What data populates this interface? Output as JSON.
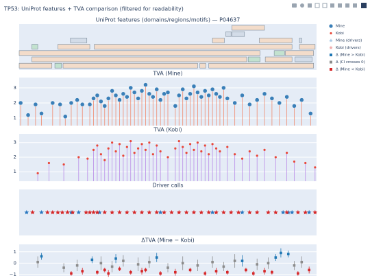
{
  "title": "TP53: UniProt features + TVA comparison (filtered for readability)",
  "chart_data": [
    {
      "type": "features",
      "title": "UniProt features (domains/regions/motifs) — P04637",
      "xlim": [
        0,
        400
      ],
      "features": [
        {
          "start": 286,
          "end": 330,
          "row": 0,
          "color": "#f3dcca"
        },
        {
          "start": 278,
          "end": 285,
          "row": 1,
          "color": "#d3dce8"
        },
        {
          "start": 286,
          "end": 303,
          "row": 1,
          "color": "#d3dce8"
        },
        {
          "start": 69,
          "end": 91,
          "row": 2,
          "color": "#d3dce8"
        },
        {
          "start": 260,
          "end": 276,
          "row": 2,
          "color": "#f3dcca"
        },
        {
          "start": 323,
          "end": 367,
          "row": 2,
          "color": "#f3dcca"
        },
        {
          "start": 377,
          "end": 380,
          "row": 2,
          "color": "#d3dce8"
        },
        {
          "start": 17,
          "end": 25,
          "row": 3,
          "color": "#c3e2cf"
        },
        {
          "start": 52,
          "end": 95,
          "row": 3,
          "color": "#f3dcca"
        },
        {
          "start": 101,
          "end": 367,
          "row": 3,
          "color": "#f3dcca"
        },
        {
          "start": 377,
          "end": 398,
          "row": 3,
          "color": "#f3dcca"
        },
        {
          "start": 0,
          "end": 324,
          "row": 4,
          "color": "#f3dcca"
        },
        {
          "start": 343,
          "end": 357,
          "row": 4,
          "color": "#c3e2cf"
        },
        {
          "start": 358,
          "end": 396,
          "row": 4,
          "color": "#f3dcca"
        },
        {
          "start": 17,
          "end": 306,
          "row": 5,
          "color": "#f3dcca"
        },
        {
          "start": 308,
          "end": 324,
          "row": 5,
          "color": "#c3e2cf"
        },
        {
          "start": 331,
          "end": 367,
          "row": 5,
          "color": "#f3dcca"
        },
        {
          "start": 371,
          "end": 394,
          "row": 5,
          "color": "#d3dce8"
        },
        {
          "start": 0,
          "end": 44,
          "row": 6,
          "color": "#f3dcca"
        },
        {
          "start": 48,
          "end": 57,
          "row": 6,
          "color": "#c3e2cf"
        },
        {
          "start": 59,
          "end": 240,
          "row": 6,
          "color": "#f3dcca"
        },
        {
          "start": 243,
          "end": 251,
          "row": 6,
          "color": "#f3dcca"
        },
        {
          "start": 255,
          "end": 396,
          "row": 6,
          "color": "#f3dcca"
        }
      ]
    },
    {
      "type": "stem",
      "title": "TVA (Mine)",
      "xlim": [
        0,
        400
      ],
      "ylim": [
        0.5,
        3.68
      ],
      "yticks": [
        1,
        2,
        3
      ],
      "grid": true,
      "series": [
        {
          "name": "Mine",
          "color": "#3a7fb8",
          "stem_color": "#f08a6e",
          "marker": "circle",
          "x": [
            2,
            12,
            22,
            30,
            45,
            55,
            62,
            70,
            78,
            85,
            95,
            100,
            105,
            110,
            115,
            120,
            125,
            130,
            135,
            140,
            145,
            150,
            155,
            160,
            165,
            170,
            175,
            180,
            185,
            190,
            195,
            200,
            210,
            215,
            220,
            225,
            230,
            235,
            240,
            245,
            250,
            255,
            260,
            265,
            270,
            275,
            280,
            290,
            300,
            310,
            320,
            330,
            340,
            350,
            360,
            370,
            380,
            392
          ],
          "values": [
            2.0,
            1.2,
            1.9,
            1.3,
            2.0,
            1.9,
            1.1,
            2.0,
            2.2,
            1.9,
            1.9,
            2.3,
            2.5,
            2.1,
            1.8,
            2.3,
            2.8,
            2.5,
            2.2,
            2.6,
            2.4,
            3.0,
            2.7,
            2.3,
            2.8,
            3.2,
            2.6,
            2.4,
            2.9,
            2.2,
            2.6,
            2.7,
            1.8,
            2.5,
            2.9,
            2.3,
            2.6,
            3.1,
            2.7,
            2.4,
            2.8,
            2.5,
            2.9,
            2.6,
            2.4,
            3.0,
            2.3,
            2.0,
            2.5,
            1.9,
            2.2,
            2.6,
            2.3,
            2.0,
            2.4,
            1.8,
            2.2,
            1.3
          ]
        }
      ]
    },
    {
      "type": "stem",
      "title": "TVA (Kobi)",
      "xlim": [
        0,
        400
      ],
      "ylim": [
        0.35,
        3.6
      ],
      "yticks": [
        1,
        2,
        3
      ],
      "grid": true,
      "series": [
        {
          "name": "Kobi",
          "color": "#e8483a",
          "stem_color": "#b98be8",
          "marker": "dot",
          "x": [
            25,
            40,
            60,
            80,
            92,
            100,
            105,
            110,
            115,
            120,
            125,
            130,
            135,
            140,
            145,
            150,
            155,
            160,
            165,
            170,
            175,
            180,
            185,
            190,
            200,
            210,
            215,
            220,
            225,
            230,
            235,
            240,
            245,
            250,
            255,
            260,
            265,
            270,
            280,
            290,
            300,
            310,
            320,
            330,
            345,
            360,
            370,
            385,
            398
          ],
          "values": [
            0.9,
            1.6,
            1.5,
            2.0,
            1.9,
            2.5,
            2.8,
            2.2,
            1.8,
            2.6,
            3.0,
            2.4,
            2.9,
            2.1,
            2.7,
            3.1,
            2.3,
            2.6,
            2.9,
            2.5,
            3.0,
            2.2,
            2.8,
            2.4,
            2.0,
            2.6,
            3.1,
            2.7,
            2.3,
            2.9,
            2.5,
            3.0,
            2.4,
            2.8,
            2.2,
            2.9,
            2.6,
            2.4,
            2.7,
            2.2,
            1.9,
            2.4,
            2.1,
            2.5,
            2.0,
            2.3,
            1.7,
            1.6,
            1.3
          ]
        }
      ]
    },
    {
      "type": "strip",
      "title": "Driver calls",
      "xlim": [
        0,
        400
      ],
      "series": [
        {
          "name": "Mine (drivers)",
          "color": "#2a78c0",
          "x": [
            10,
            30,
            70,
            80,
            108,
            190,
            260,
            300,
            355,
            362,
            367,
            390
          ]
        },
        {
          "name": "Kobi (drivers)",
          "color": "#d62728",
          "x": [
            18,
            38,
            45,
            52,
            58,
            65,
            72,
            90,
            95,
            100,
            105,
            115,
            125,
            135,
            145,
            155,
            165,
            175,
            185,
            195,
            205,
            215,
            225,
            235,
            245,
            255,
            265,
            275,
            285,
            295,
            310,
            320,
            335,
            345,
            360,
            375,
            385,
            398
          ]
        }
      ]
    },
    {
      "type": "errorbar",
      "title": "ΔTVA (Mine − Kobi)",
      "xlim": [
        0,
        400
      ],
      "ylim": [
        -1.12,
        1.65
      ],
      "yticks": [
        {
          "value": -1,
          "label": "−1"
        },
        0,
        1
      ],
      "grid": true,
      "series": [
        {
          "name": "Δ (Mine > Kobi)",
          "color": "#1f77b4",
          "x": [
            30,
            98,
            130,
            185,
            300,
            345,
            352,
            362
          ],
          "values": [
            0.6,
            0.3,
            0.4,
            0.5,
            0.2,
            0.5,
            0.9,
            0.8
          ],
          "errors": [
            0.3,
            0.3,
            0.4,
            0.4,
            0.5,
            0.3,
            0.4,
            0.3
          ]
        },
        {
          "name": "Δ (CI crosses 0)",
          "color": "#8c8c8c",
          "x": [
            25,
            60,
            78,
            110,
            125,
            140,
            160,
            175,
            200,
            220,
            240,
            260,
            275,
            290,
            320,
            335,
            370,
            380
          ],
          "values": [
            0.1,
            -0.4,
            -0.2,
            0.0,
            -0.3,
            0.2,
            -0.1,
            0.1,
            -0.4,
            0.0,
            -0.2,
            0.1,
            -0.3,
            0.2,
            -0.1,
            0.0,
            -0.2,
            0.1
          ],
          "errors": [
            0.5,
            0.4,
            0.5,
            0.6,
            0.5,
            0.5,
            0.6,
            0.5,
            0.4,
            0.6,
            0.5,
            0.5,
            0.4,
            0.6,
            0.5,
            0.5,
            0.4,
            0.5
          ]
        },
        {
          "name": "Δ (Mine < Kobi)",
          "color": "#d62728",
          "x": [
            70,
            85,
            105,
            115,
            120,
            135,
            150,
            165,
            170,
            190,
            210,
            230,
            250,
            265,
            280,
            305,
            315,
            330,
            340,
            375,
            390
          ],
          "values": [
            -0.9,
            -0.7,
            -0.8,
            -0.6,
            -0.9,
            -0.5,
            -0.8,
            -0.7,
            -0.6,
            -0.9,
            -0.8,
            -0.6,
            -0.9,
            -0.7,
            -0.8,
            -0.6,
            -0.9,
            -0.7,
            -0.8,
            -0.9,
            -0.6
          ],
          "errors": [
            0.2,
            0.3,
            0.2,
            0.2,
            0.3,
            0.2,
            0.2,
            0.3,
            0.2,
            0.2,
            0.3,
            0.2,
            0.2,
            0.3,
            0.2,
            0.2,
            0.2,
            0.3,
            0.2,
            0.2,
            0.3
          ]
        }
      ]
    }
  ]
}
